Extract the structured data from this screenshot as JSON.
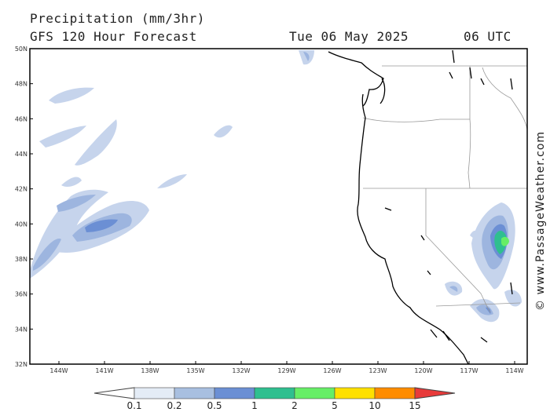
{
  "header": {
    "title": "Precipitation (mm/3hr)",
    "subtitle": "GFS 120 Hour Forecast",
    "date": "Tue 06 May 2025",
    "time": "06 UTC"
  },
  "credit": "© www.PassageWeather.com",
  "map": {
    "lat_labels": [
      "50N",
      "48N",
      "46N",
      "44N",
      "42N",
      "40N",
      "38N",
      "36N",
      "34N",
      "32N"
    ],
    "lon_labels": [
      "144W",
      "141W",
      "138W",
      "135W",
      "132W",
      "129W",
      "126W",
      "123W",
      "120W",
      "117W",
      "114W"
    ],
    "lat_range": [
      32,
      50
    ],
    "lon_range": [
      -145.5,
      -113
    ],
    "colors": {
      "land_outline": "#000000",
      "borders": "#999999",
      "frame": "#000000"
    }
  },
  "colorbar": {
    "labels": [
      "0.1",
      "0.2",
      "0.5",
      "1",
      "2",
      "5",
      "10",
      "15"
    ],
    "colors": [
      "#ffffff",
      "#e4ecf6",
      "#a8bfe0",
      "#6b8fd4",
      "#2fbf8f",
      "#66ee66",
      "#ffe000",
      "#ff8c00",
      "#e83a3a"
    ]
  }
}
